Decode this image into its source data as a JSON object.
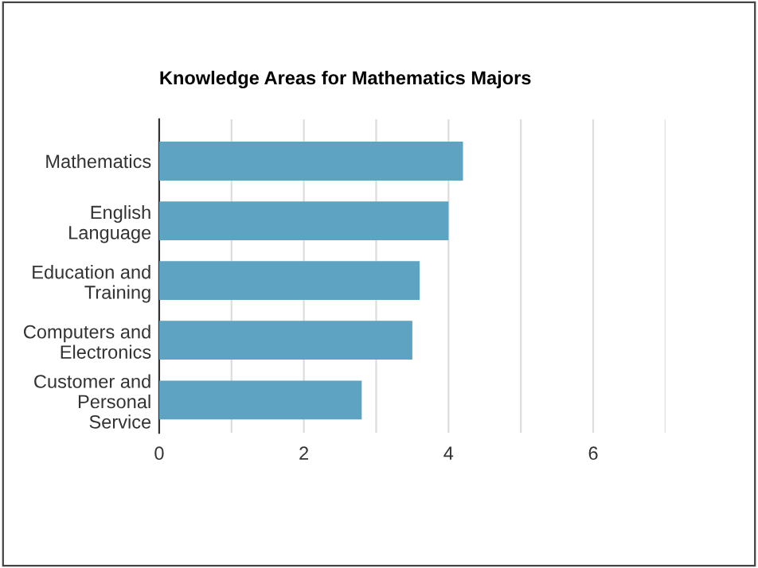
{
  "chart_data": {
    "type": "bar",
    "orientation": "horizontal",
    "title": "Knowledge Areas for Mathematics Majors",
    "categories": [
      "Mathematics",
      "English\nLanguage",
      "Education and\nTraining",
      "Computers and\nElectronics",
      "Customer and\nPersonal\nService"
    ],
    "values": [
      4.2,
      4.0,
      3.6,
      3.5,
      2.8
    ],
    "color": "#5ea3c1",
    "xlim": [
      0,
      7
    ],
    "xticks": [
      0,
      {
        "value": 1,
        "label": null
      },
      2,
      {
        "value": 3,
        "label": null
      },
      4,
      {
        "value": 5,
        "label": null
      },
      6,
      {
        "value": 7,
        "label": null
      }
    ],
    "grid": "x"
  }
}
